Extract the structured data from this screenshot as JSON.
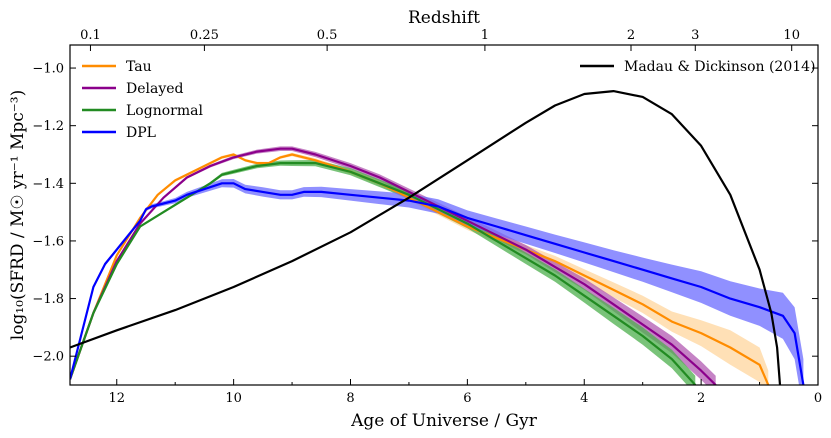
{
  "chart_data": {
    "type": "line",
    "top_axis": {
      "label": "Redshift",
      "ticks": [
        {
          "label": "0.1",
          "age": 12.45
        },
        {
          "label": "0.25",
          "age": 10.5
        },
        {
          "label": "0.5",
          "age": 8.4
        },
        {
          "label": "1",
          "age": 5.7
        },
        {
          "label": "2",
          "age": 3.2
        },
        {
          "label": "3",
          "age": 2.1
        },
        {
          "label": "10",
          "age": 0.45
        }
      ]
    },
    "xlabel": "Age of Universe / Gyr",
    "ylabel": "log₁₀(SFRD / M☉ yr⁻¹ Mpc⁻³)",
    "xlim": [
      12.8,
      0
    ],
    "ylim": [
      -2.1,
      -0.92
    ],
    "x_ticks": [
      12,
      10,
      8,
      6,
      4,
      2,
      0
    ],
    "y_ticks": [
      -1.0,
      -1.2,
      -1.4,
      -1.6,
      -1.8,
      -2.0
    ],
    "legend_left": [
      "Tau",
      "Delayed",
      "Lognormal",
      "DPL"
    ],
    "legend_right": [
      "Madau & Dickinson (2014)"
    ],
    "series": [
      {
        "name": "Tau",
        "color": "#ff8c00",
        "band_color": "#ffd59e",
        "x": [
          12.8,
          12.4,
          12.0,
          11.6,
          11.3,
          11.0,
          10.6,
          10.2,
          10.0,
          9.8,
          9.6,
          9.4,
          9.2,
          9.0,
          8.6,
          8.0,
          7.5,
          7.0,
          6.5,
          6.0,
          5.5,
          5.0,
          4.5,
          4.0,
          3.5,
          3.0,
          2.5,
          2.0,
          1.5,
          1.0,
          0.85
        ],
        "y": [
          -2.08,
          -1.85,
          -1.65,
          -1.52,
          -1.44,
          -1.39,
          -1.35,
          -1.31,
          -1.3,
          -1.32,
          -1.33,
          -1.33,
          -1.31,
          -1.3,
          -1.32,
          -1.36,
          -1.4,
          -1.45,
          -1.5,
          -1.55,
          -1.59,
          -1.63,
          -1.67,
          -1.72,
          -1.77,
          -1.82,
          -1.88,
          -1.92,
          -1.97,
          -2.03,
          -2.1
        ],
        "spread": [
          0.005,
          0.005,
          0.005,
          0.005,
          0.005,
          0.005,
          0.005,
          0.005,
          0.005,
          0.005,
          0.005,
          0.005,
          0.005,
          0.006,
          0.007,
          0.008,
          0.009,
          0.01,
          0.01,
          0.012,
          0.014,
          0.016,
          0.018,
          0.022,
          0.026,
          0.03,
          0.035,
          0.045,
          0.06,
          0.06,
          0.05
        ]
      },
      {
        "name": "Delayed",
        "color": "#8b008b",
        "band_color": "#b25ab2",
        "x": [
          12.8,
          12.4,
          12.0,
          11.6,
          11.2,
          10.8,
          10.4,
          10.0,
          9.6,
          9.2,
          9.0,
          8.6,
          8.0,
          7.5,
          7.0,
          6.5,
          6.0,
          5.5,
          5.0,
          4.5,
          4.0,
          3.5,
          3.0,
          2.5,
          2.0,
          1.75
        ],
        "y": [
          -2.08,
          -1.85,
          -1.67,
          -1.54,
          -1.45,
          -1.38,
          -1.34,
          -1.31,
          -1.29,
          -1.28,
          -1.28,
          -1.3,
          -1.34,
          -1.38,
          -1.43,
          -1.48,
          -1.53,
          -1.58,
          -1.63,
          -1.69,
          -1.75,
          -1.82,
          -1.89,
          -1.96,
          -2.05,
          -2.1
        ],
        "spread": [
          0.004,
          0.004,
          0.004,
          0.004,
          0.004,
          0.004,
          0.005,
          0.006,
          0.007,
          0.008,
          0.008,
          0.009,
          0.01,
          0.011,
          0.012,
          0.013,
          0.014,
          0.015,
          0.016,
          0.018,
          0.02,
          0.024,
          0.028,
          0.03,
          0.032,
          0.032
        ]
      },
      {
        "name": "Lognormal",
        "color": "#228b22",
        "band_color": "#4caf4c",
        "x": [
          12.8,
          12.4,
          12.0,
          11.6,
          11.2,
          10.8,
          10.4,
          10.2,
          10.0,
          9.6,
          9.2,
          9.0,
          8.6,
          8.0,
          7.5,
          7.0,
          6.5,
          6.0,
          5.5,
          5.0,
          4.5,
          4.0,
          3.5,
          3.0,
          2.5,
          2.1
        ],
        "y": [
          -2.08,
          -1.85,
          -1.68,
          -1.55,
          -1.5,
          -1.45,
          -1.4,
          -1.37,
          -1.36,
          -1.34,
          -1.33,
          -1.33,
          -1.33,
          -1.36,
          -1.4,
          -1.44,
          -1.49,
          -1.54,
          -1.6,
          -1.66,
          -1.72,
          -1.79,
          -1.86,
          -1.93,
          -2.01,
          -2.1
        ],
        "spread": [
          0.004,
          0.004,
          0.004,
          0.004,
          0.004,
          0.004,
          0.005,
          0.006,
          0.007,
          0.008,
          0.009,
          0.01,
          0.011,
          0.012,
          0.013,
          0.014,
          0.015,
          0.016,
          0.018,
          0.02,
          0.022,
          0.024,
          0.028,
          0.03,
          0.032,
          0.032
        ]
      },
      {
        "name": "DPL",
        "color": "#0000ff",
        "band_color": "#6b6bff",
        "x": [
          12.8,
          12.6,
          12.4,
          12.2,
          12.0,
          11.8,
          11.6,
          11.5,
          11.4,
          11.2,
          11.0,
          10.8,
          10.5,
          10.2,
          10.0,
          9.8,
          9.5,
          9.2,
          9.0,
          8.8,
          8.5,
          8.0,
          7.5,
          7.0,
          6.5,
          6.0,
          5.5,
          5.0,
          4.5,
          4.0,
          3.5,
          3.0,
          2.5,
          2.0,
          1.5,
          1.0,
          0.6,
          0.4,
          0.25
        ],
        "y": [
          -2.08,
          -1.92,
          -1.76,
          -1.68,
          -1.63,
          -1.58,
          -1.53,
          -1.49,
          -1.48,
          -1.47,
          -1.46,
          -1.44,
          -1.42,
          -1.4,
          -1.4,
          -1.42,
          -1.43,
          -1.44,
          -1.44,
          -1.43,
          -1.43,
          -1.44,
          -1.45,
          -1.46,
          -1.48,
          -1.52,
          -1.55,
          -1.58,
          -1.61,
          -1.64,
          -1.67,
          -1.7,
          -1.73,
          -1.76,
          -1.8,
          -1.83,
          -1.86,
          -1.92,
          -2.1
        ],
        "spread": [
          0.005,
          0.006,
          0.006,
          0.006,
          0.006,
          0.006,
          0.006,
          0.006,
          0.007,
          0.008,
          0.009,
          0.01,
          0.012,
          0.014,
          0.015,
          0.015,
          0.016,
          0.016,
          0.016,
          0.017,
          0.018,
          0.02,
          0.022,
          0.024,
          0.025,
          0.026,
          0.028,
          0.03,
          0.032,
          0.035,
          0.038,
          0.042,
          0.048,
          0.055,
          0.06,
          0.065,
          0.08,
          0.09,
          0.09
        ]
      },
      {
        "name": "Madau & Dickinson (2014)",
        "color": "#000000",
        "x": [
          12.8,
          12.0,
          11.0,
          10.0,
          9.0,
          8.0,
          7.0,
          6.0,
          5.0,
          4.5,
          4.0,
          3.5,
          3.0,
          2.5,
          2.0,
          1.5,
          1.0,
          0.8,
          0.7,
          0.65
        ],
        "y": [
          -1.97,
          -1.91,
          -1.84,
          -1.76,
          -1.67,
          -1.57,
          -1.45,
          -1.32,
          -1.19,
          -1.13,
          -1.09,
          -1.08,
          -1.1,
          -1.16,
          -1.27,
          -1.44,
          -1.7,
          -1.85,
          -1.97,
          -2.1
        ]
      }
    ]
  }
}
